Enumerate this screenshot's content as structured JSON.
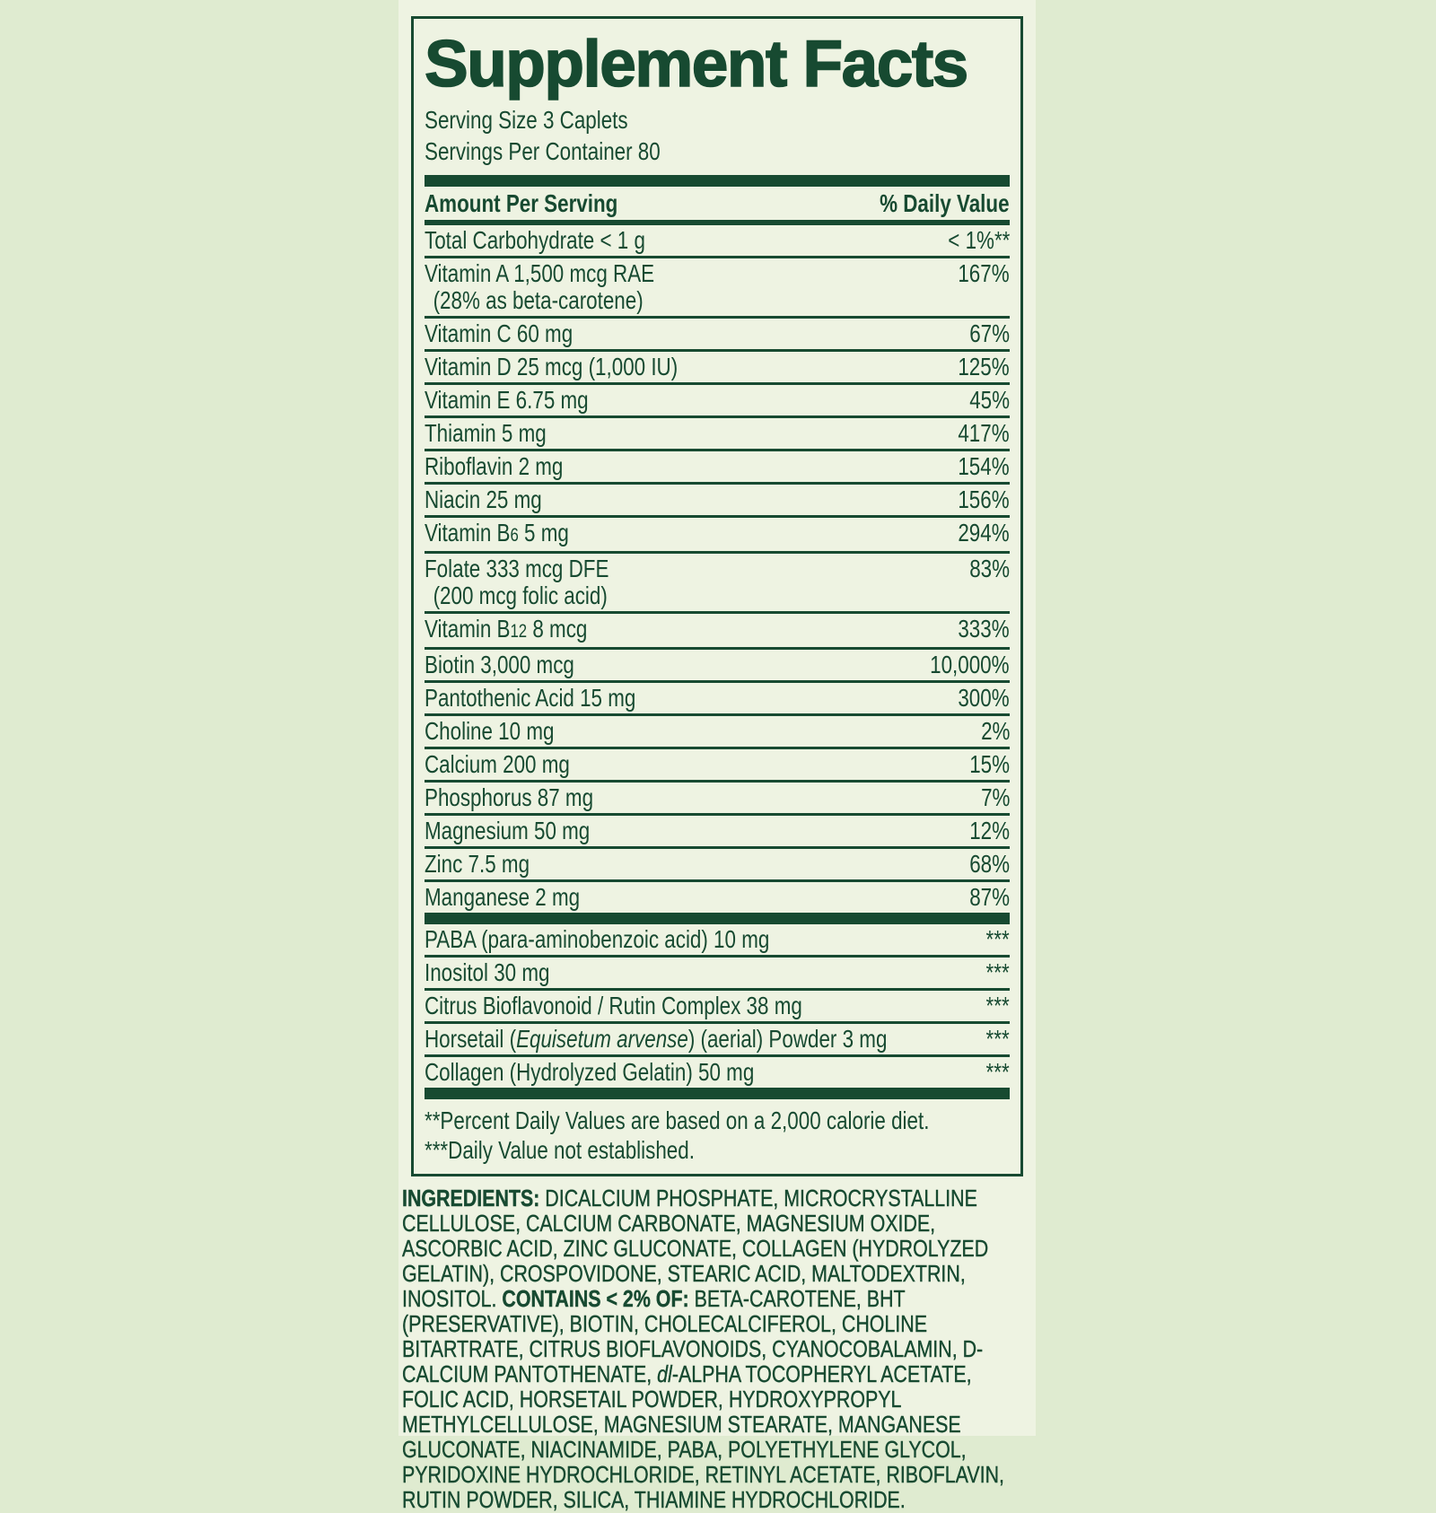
{
  "colors": {
    "bg": "#dfebd0",
    "panel": "#eef3e2",
    "ink": "#174a31"
  },
  "label": {
    "title": "Supplement Facts",
    "serving_size": "Serving Size 3 Caplets",
    "servings_per_container": "Servings Per Container 80",
    "columns": {
      "amount": "Amount Per Serving",
      "daily_value": "% Daily Value"
    },
    "rows": [
      {
        "name": "Total Carbohydrate < 1 g",
        "dv": "< 1%**"
      },
      {
        "name": "Vitamin A 1,500 mcg RAE",
        "line2": "(28% as beta-carotene)",
        "dv": "167%"
      },
      {
        "name": "Vitamin C 60 mg",
        "dv": "67%"
      },
      {
        "name": "Vitamin D 25 mcg (1,000 IU)",
        "dv": "125%"
      },
      {
        "name": "Vitamin E 6.75 mg",
        "dv": "45%"
      },
      {
        "name": "Thiamin 5 mg",
        "dv": "417%"
      },
      {
        "name": "Riboflavin 2 mg",
        "dv": "154%"
      },
      {
        "name": "Niacin 25 mg",
        "dv": "156%"
      },
      {
        "pre": "Vitamin B",
        "sub": "6",
        "post": " 5 mg",
        "dv": "294%"
      },
      {
        "name": "Folate 333 mcg DFE",
        "line2": "(200 mcg folic acid)",
        "dv": "83%"
      },
      {
        "pre": "Vitamin B",
        "sub": "12",
        "post": " 8 mcg",
        "dv": "333%"
      },
      {
        "name": "Biotin 3,000 mcg",
        "dv": "10,000%"
      },
      {
        "name": "Pantothenic Acid 15 mg",
        "dv": "300%"
      },
      {
        "name": "Choline 10 mg",
        "dv": "2%"
      },
      {
        "name": "Calcium 200 mg",
        "dv": "15%"
      },
      {
        "name": "Phosphorus 87 mg",
        "dv": "7%"
      },
      {
        "name": "Magnesium 50 mg",
        "dv": "12%"
      },
      {
        "name": "Zinc 7.5 mg",
        "dv": "68%"
      },
      {
        "name": "Manganese 2 mg",
        "dv": "87%"
      }
    ],
    "other_rows": [
      {
        "name": "PABA (para-aminobenzoic acid) 10 mg",
        "dv": "***"
      },
      {
        "name": "Inositol 30 mg",
        "dv": "***"
      },
      {
        "name": "Citrus Bioflavonoid / Rutin Complex 38 mg",
        "dv": "***"
      },
      {
        "pre": "Horsetail (",
        "italic": "Equisetum arvense",
        "post": ") (aerial) Powder 3 mg",
        "dv": "***"
      },
      {
        "name": "Collagen (Hydrolyzed Gelatin) 50 mg",
        "dv": "***"
      }
    ],
    "footnotes": [
      "**Percent Daily Values are based on a 2,000 calorie diet.",
      "***Daily Value not established."
    ],
    "ingredients": {
      "label": "INGREDIENTS:",
      "part1": " DICALCIUM PHOSPHATE, MICROCRYSTALLINE CELLULOSE, CALCIUM CARBONATE, MAGNESIUM OXIDE, ASCORBIC ACID, ZINC GLUCONATE, COLLAGEN (HYDROLYZED GELATIN), CROSPOVIDONE, STEARIC ACID, MALTODEXTRIN, INOSITOL. ",
      "contains_label": "CONTAINS < 2% OF:",
      "part2": " BETA-CAROTENE, BHT (PRESERVATIVE), BIOTIN, CHOLECALCIFEROL, CHOLINE BITARTRATE, CITRUS BIOFLAVONOIDS, CYANOCOBALAMIN, D-CALCIUM PANTOTHENATE, ",
      "italic": "dl",
      "part3": "-ALPHA TOCOPHERYL ACETATE, FOLIC ACID, HORSETAIL POWDER, HYDROXYPROPYL METHYLCELLULOSE, MAGNESIUM STEARATE, MANGANESE GLUCONATE, NIACINAMIDE, PABA, POLYETHYLENE GLYCOL, PYRIDOXINE HYDROCHLORIDE, RETINYL ACETATE, RIBOFLAVIN, RUTIN POWDER, SILICA, THIAMINE HYDROCHLORIDE."
    }
  }
}
